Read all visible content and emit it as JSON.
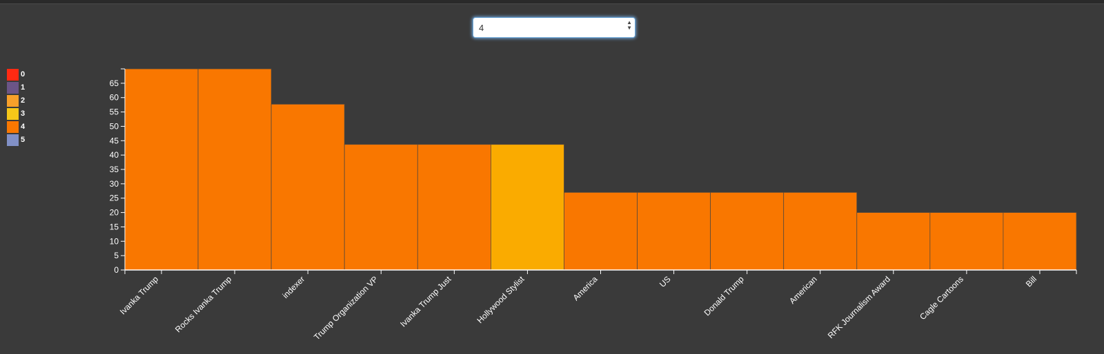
{
  "selector": {
    "value": "4"
  },
  "legend": [
    {
      "label": "0",
      "color": "#ff2a12"
    },
    {
      "label": "1",
      "color": "#6b5587"
    },
    {
      "label": "2",
      "color": "#f7a02a"
    },
    {
      "label": "3",
      "color": "#f6c719"
    },
    {
      "label": "4",
      "color": "#f97700"
    },
    {
      "label": "5",
      "color": "#8190c6"
    }
  ],
  "chart_data": {
    "type": "bar",
    "categories": [
      "Ivanka Trump",
      "Rocks Ivanka Trump",
      "indexer",
      "Trump Organization VP",
      "Ivanka Trump Just",
      "Hollywood Stylist",
      "America",
      "US",
      "Donald Trump",
      "American",
      "RFK Journalism Award",
      "Cagle Cartoons",
      "Bill"
    ],
    "values": [
      70,
      70,
      57.7,
      43.7,
      43.7,
      43.7,
      27,
      27,
      27,
      27,
      20,
      20,
      20
    ],
    "bar_colors": [
      "#f97700",
      "#f97700",
      "#f97700",
      "#f97700",
      "#f97700",
      "#faab00",
      "#f97700",
      "#f97700",
      "#f97700",
      "#f97700",
      "#f97700",
      "#f97700",
      "#f97700"
    ],
    "yticks": [
      0,
      5,
      10,
      15,
      20,
      25,
      30,
      35,
      40,
      45,
      50,
      55,
      60,
      65
    ],
    "ylim": [
      0,
      70
    ],
    "title": "",
    "xlabel": "",
    "ylabel": "",
    "grid": false,
    "legend_position": "left"
  }
}
